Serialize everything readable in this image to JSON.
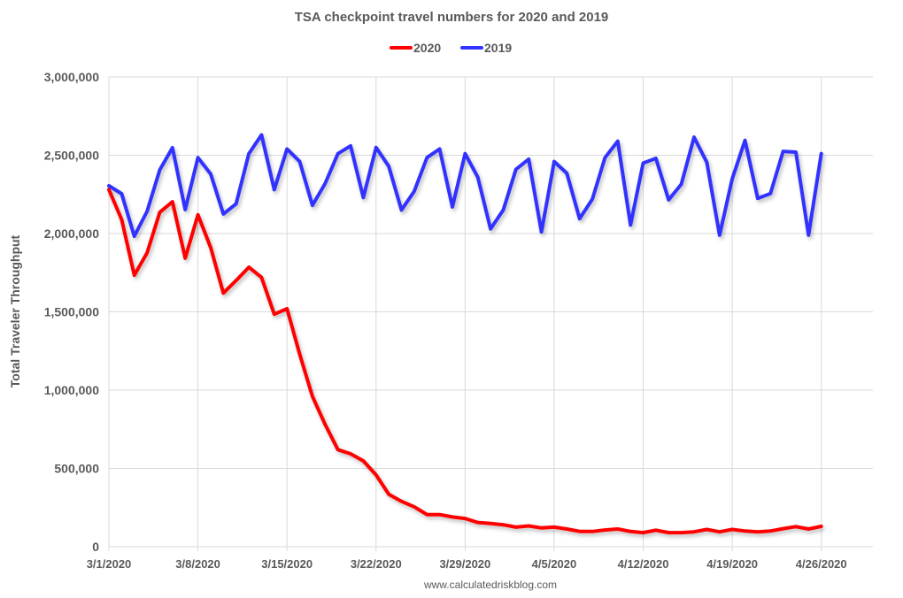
{
  "chart_data": {
    "type": "line",
    "title": "TSA checkpoint travel numbers for 2020 and 2019",
    "xlabel": "",
    "ylabel": "Total Traveler Throughput",
    "ylim": [
      0,
      3000000
    ],
    "yticks": [
      0,
      500000,
      1000000,
      1500000,
      2000000,
      2500000,
      3000000
    ],
    "ytick_labels": [
      "0",
      "500,000",
      "1,000,000",
      "1,500,000",
      "2,000,000",
      "2,500,000",
      "3,000,000"
    ],
    "xlim_days": [
      0,
      60
    ],
    "xtick_days": [
      0,
      7,
      14,
      21,
      28,
      35,
      42,
      49,
      56
    ],
    "xtick_labels": [
      "3/1/2020",
      "3/8/2020",
      "3/15/2020",
      "3/22/2020",
      "3/29/2020",
      "4/5/2020",
      "4/12/2020",
      "4/19/2020",
      "4/26/2020"
    ],
    "x_description": "daily dates from 3/1/2020 to 4/26/2020 (day index 0-56)",
    "grid": true,
    "legend_position": "top",
    "series": [
      {
        "name": "2020",
        "color": "#ff0000",
        "values": [
          2280000,
          2090000,
          1734000,
          1876000,
          2136000,
          2203000,
          1843000,
          2120000,
          1910000,
          1620000,
          1700000,
          1785000,
          1720000,
          1485000,
          1520000,
          1230000,
          960000,
          780000,
          620000,
          593000,
          548000,
          458000,
          335000,
          290000,
          255000,
          205000,
          205000,
          190000,
          180000,
          155000,
          148000,
          140000,
          125000,
          133000,
          120000,
          125000,
          113000,
          98000,
          97000,
          107000,
          113000,
          97000,
          90000,
          105000,
          90000,
          90000,
          95000,
          110000,
          95000,
          110000,
          100000,
          95000,
          100000,
          115000,
          128000,
          113000,
          130000
        ]
      },
      {
        "name": "2019",
        "color": "#3333ff",
        "values": [
          2305000,
          2254000,
          1983000,
          2141000,
          2407000,
          2548000,
          2153000,
          2485000,
          2380000,
          2125000,
          2190000,
          2510000,
          2630000,
          2280000,
          2540000,
          2460000,
          2180000,
          2320000,
          2510000,
          2560000,
          2230000,
          2550000,
          2430000,
          2150000,
          2270000,
          2485000,
          2540000,
          2170000,
          2510000,
          2360000,
          2030000,
          2150000,
          2410000,
          2475000,
          2010000,
          2460000,
          2385000,
          2095000,
          2220000,
          2485000,
          2590000,
          2055000,
          2450000,
          2480000,
          2215000,
          2315000,
          2615000,
          2455000,
          1990000,
          2350000,
          2595000,
          2225000,
          2255000,
          2525000,
          2520000,
          1990000,
          2510000
        ]
      }
    ],
    "source": "www.calculatedriskblog.com"
  }
}
